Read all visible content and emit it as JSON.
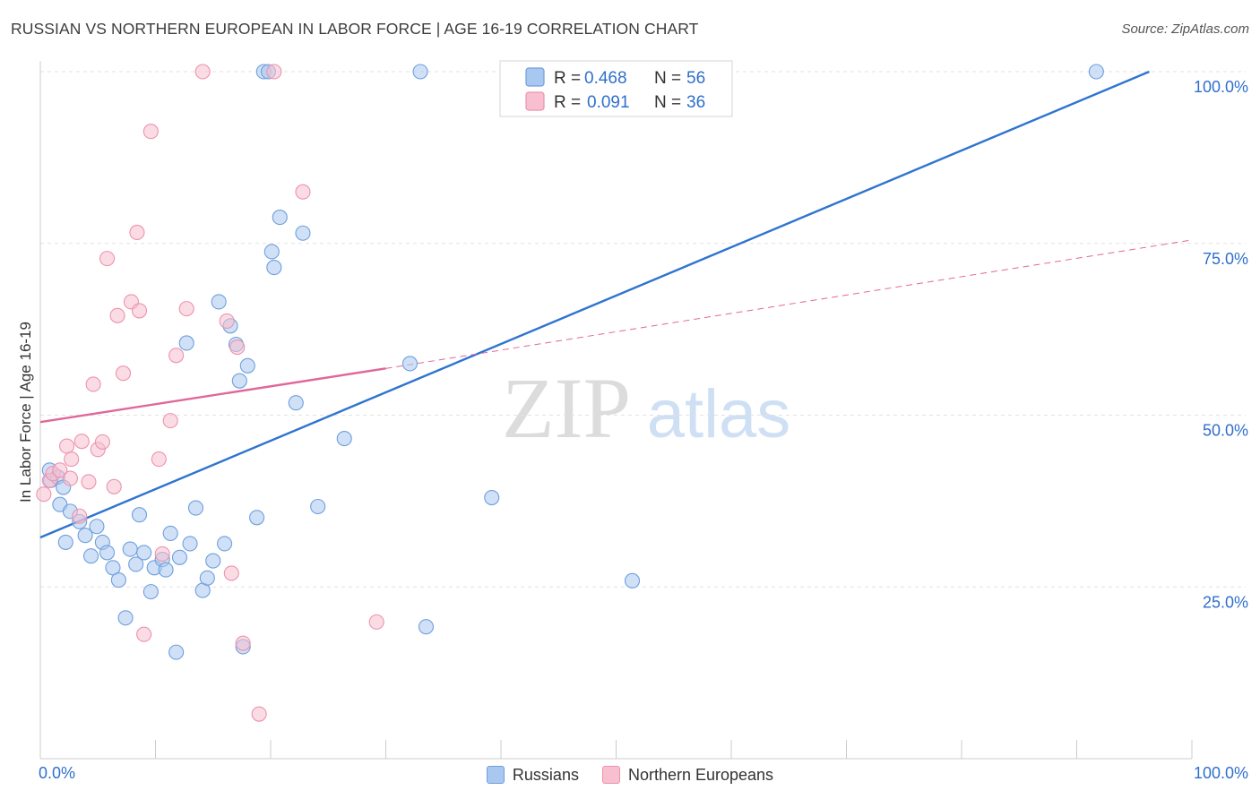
{
  "header": {
    "title": "RUSSIAN VS NORTHERN EUROPEAN IN LABOR FORCE | AGE 16-19 CORRELATION CHART",
    "source": "Source: ZipAtlas.com"
  },
  "watermark": {
    "zip": "ZIP",
    "atlas": "atlas"
  },
  "colors": {
    "russians_fill": "#a9c8f0",
    "russians_stroke": "#6f9fdc",
    "russians_line": "#2f74d0",
    "northern_fill": "#f7bfd0",
    "northern_stroke": "#ec93ae",
    "northern_line": "#e0679a",
    "value_text": "#2f6fcc"
  },
  "legend": {
    "rows": [
      {
        "r_label": "R =",
        "r_value": "0.468",
        "n_label": "N =",
        "n_value": "56"
      },
      {
        "r_label": "R =",
        "r_value": "0.091",
        "n_label": "N =",
        "n_value": "36"
      }
    ]
  },
  "bottom_legend": {
    "russians": "Russians",
    "northern": "Northern Europeans"
  },
  "chart_data": {
    "type": "scatter",
    "title": "RUSSIAN VS NORTHERN EUROPEAN IN LABOR FORCE | AGE 16-19 CORRELATION CHART",
    "xlabel": "",
    "ylabel": "In Labor Force | Age 16-19",
    "xlim": [
      0,
      100
    ],
    "ylim": [
      0,
      100
    ],
    "x_tick_labels": [
      "0.0%",
      "100.0%"
    ],
    "y_ticks": [
      25,
      50,
      75,
      100
    ],
    "y_tick_labels": [
      "25.0%",
      "50.0%",
      "75.0%",
      "100.0%"
    ],
    "grid": true,
    "legend_position": "top-center",
    "series": [
      {
        "name": "Russians",
        "R": 0.468,
        "N": 56,
        "trend": {
          "x": [
            0,
            96.3
          ],
          "y": [
            32.2,
            100.0
          ],
          "style": "solid"
        },
        "points": [
          [
            0.8,
            42.0
          ],
          [
            0.9,
            40.5
          ],
          [
            1.7,
            37.0
          ],
          [
            2.2,
            31.5
          ],
          [
            2.6,
            36.0
          ],
          [
            3.4,
            34.5
          ],
          [
            3.9,
            32.5
          ],
          [
            4.4,
            29.5
          ],
          [
            4.9,
            33.8
          ],
          [
            5.4,
            31.5
          ],
          [
            5.8,
            30.0
          ],
          [
            6.3,
            27.8
          ],
          [
            6.8,
            26.0
          ],
          [
            7.4,
            20.5
          ],
          [
            7.8,
            30.5
          ],
          [
            8.3,
            28.3
          ],
          [
            8.6,
            35.5
          ],
          [
            9.0,
            30.0
          ],
          [
            9.6,
            24.3
          ],
          [
            9.9,
            27.8
          ],
          [
            10.6,
            29.0
          ],
          [
            10.9,
            27.5
          ],
          [
            11.3,
            32.8
          ],
          [
            11.8,
            15.5
          ],
          [
            12.1,
            29.3
          ],
          [
            12.7,
            60.5
          ],
          [
            13.0,
            31.3
          ],
          [
            13.5,
            36.5
          ],
          [
            14.1,
            24.5
          ],
          [
            14.5,
            26.3
          ],
          [
            15.0,
            28.8
          ],
          [
            15.5,
            66.5
          ],
          [
            16.0,
            31.3
          ],
          [
            16.5,
            63.0
          ],
          [
            17.0,
            60.3
          ],
          [
            17.3,
            55.0
          ],
          [
            17.6,
            16.3
          ],
          [
            18.0,
            57.2
          ],
          [
            18.8,
            35.1
          ],
          [
            19.4,
            100.0
          ],
          [
            19.8,
            100.0
          ],
          [
            20.1,
            73.8
          ],
          [
            20.3,
            71.5
          ],
          [
            20.8,
            78.8
          ],
          [
            22.2,
            51.8
          ],
          [
            22.8,
            76.5
          ],
          [
            24.1,
            36.7
          ],
          [
            26.4,
            46.6
          ],
          [
            32.1,
            57.5
          ],
          [
            33.5,
            19.2
          ],
          [
            33.0,
            100.0
          ],
          [
            39.2,
            38.0
          ],
          [
            51.4,
            25.9
          ],
          [
            91.7,
            100.0
          ],
          [
            1.5,
            41.0
          ],
          [
            2.0,
            39.5
          ]
        ]
      },
      {
        "name": "Northern Europeans",
        "R": 0.091,
        "N": 36,
        "trend": {
          "x": [
            0,
            30.0,
            100
          ],
          "y": [
            49.0,
            56.8,
            75.5
          ],
          "style": "solid_then_dashed",
          "solid_until": 30.0
        },
        "points": [
          [
            0.3,
            38.5
          ],
          [
            0.8,
            40.5
          ],
          [
            1.1,
            41.5
          ],
          [
            1.7,
            42.0
          ],
          [
            2.3,
            45.5
          ],
          [
            2.6,
            40.8
          ],
          [
            2.7,
            43.6
          ],
          [
            3.4,
            35.3
          ],
          [
            3.6,
            46.2
          ],
          [
            4.2,
            40.3
          ],
          [
            4.6,
            54.5
          ],
          [
            5.0,
            45.0
          ],
          [
            5.4,
            46.1
          ],
          [
            5.8,
            72.8
          ],
          [
            6.4,
            39.6
          ],
          [
            6.7,
            64.5
          ],
          [
            7.2,
            56.1
          ],
          [
            7.9,
            66.5
          ],
          [
            8.4,
            76.6
          ],
          [
            8.6,
            65.2
          ],
          [
            9.0,
            18.1
          ],
          [
            9.6,
            91.3
          ],
          [
            10.3,
            43.6
          ],
          [
            10.6,
            29.8
          ],
          [
            11.3,
            49.2
          ],
          [
            11.8,
            58.7
          ],
          [
            12.7,
            65.5
          ],
          [
            14.1,
            100.0
          ],
          [
            16.2,
            63.7
          ],
          [
            16.6,
            27.0
          ],
          [
            17.1,
            59.9
          ],
          [
            17.6,
            16.8
          ],
          [
            19.0,
            6.5
          ],
          [
            20.3,
            100.0
          ],
          [
            22.8,
            82.5
          ],
          [
            29.2,
            19.9
          ]
        ]
      }
    ]
  }
}
